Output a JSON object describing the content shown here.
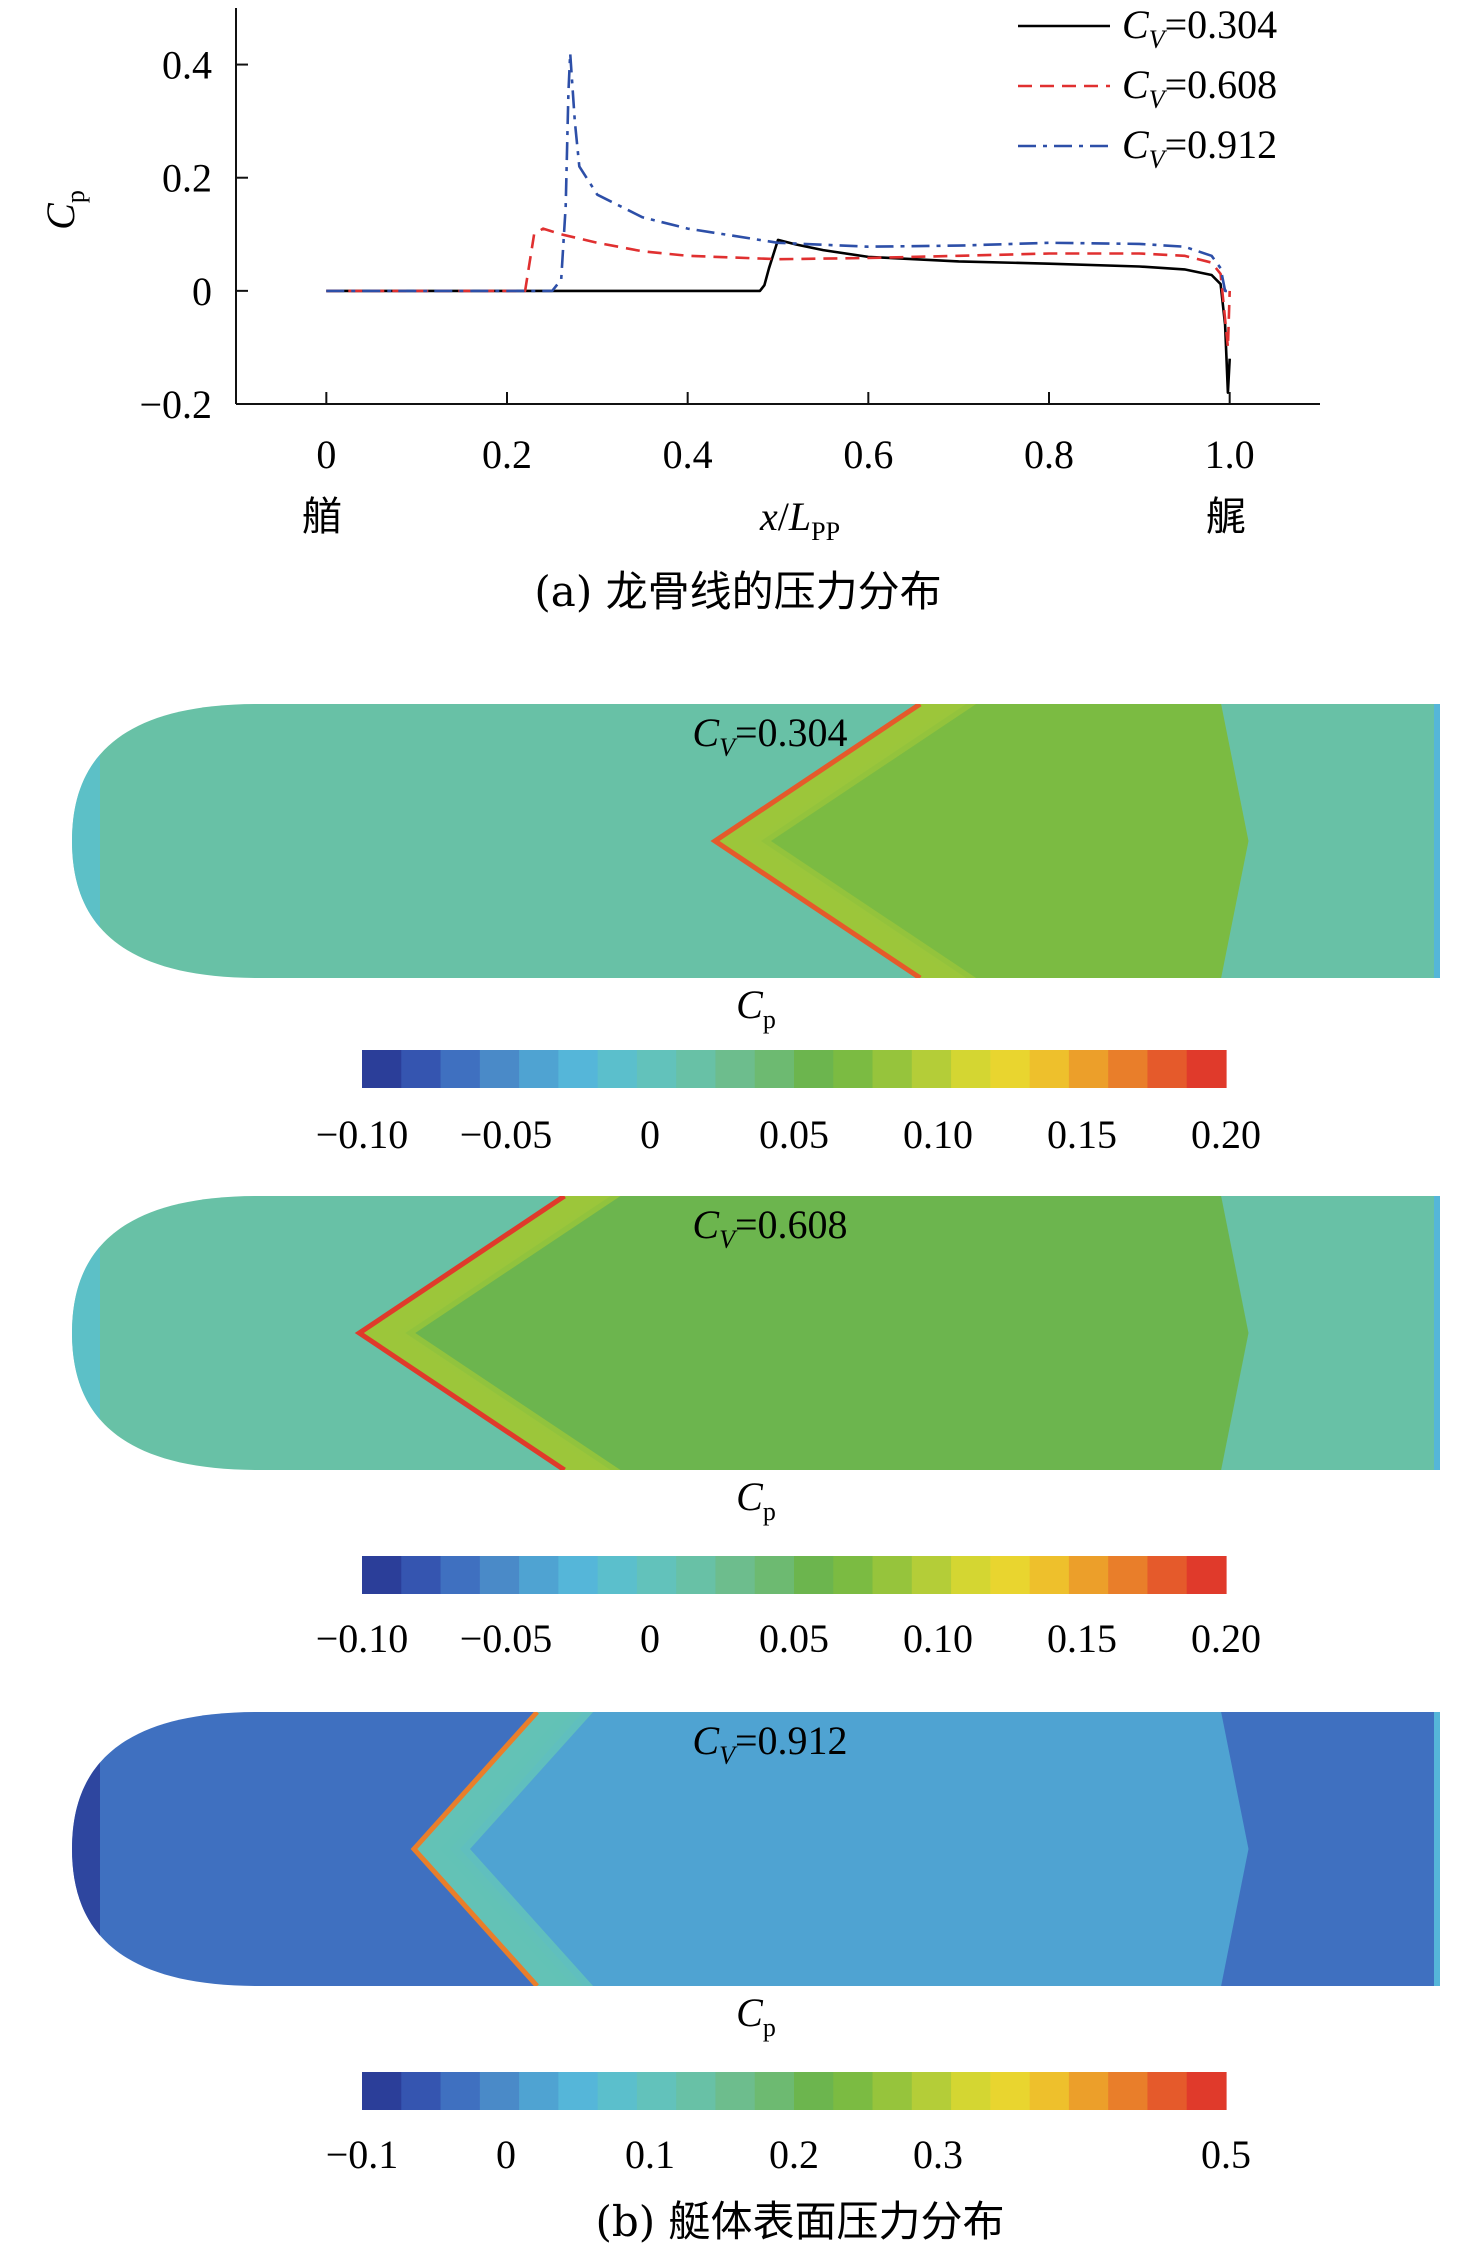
{
  "figure": {
    "caption_a": "(a) 龙骨线的压力分布",
    "caption_b": "(b) 艇体表面压力分布",
    "bow_label": "艏",
    "stern_label": "艉"
  },
  "chart_data": [
    {
      "type": "line",
      "xlabel": "x/Lpp",
      "ylabel": "Cp",
      "xlim": [
        -0.1,
        1.1
      ],
      "ylim": [
        -0.2,
        0.5
      ],
      "xticks": [
        "0",
        "0.2",
        "0.4",
        "0.6",
        "0.8",
        "1.0"
      ],
      "yticks": [
        "−0.2",
        "0",
        "0.2",
        "0.4"
      ],
      "legend": "top-right",
      "series": [
        {
          "name": "CV=0.304",
          "color": "#000000",
          "dash": "solid",
          "x": [
            0.0,
            0.1,
            0.2,
            0.3,
            0.4,
            0.48,
            0.485,
            0.49,
            0.5,
            0.52,
            0.55,
            0.6,
            0.7,
            0.8,
            0.9,
            0.95,
            0.98,
            0.99,
            0.995,
            0.998,
            1.0
          ],
          "y": [
            0.0,
            0.0,
            0.0,
            0.0,
            0.0,
            0.0,
            0.01,
            0.04,
            0.09,
            0.082,
            0.072,
            0.06,
            0.052,
            0.048,
            0.043,
            0.038,
            0.028,
            0.012,
            -0.06,
            -0.18,
            -0.12
          ]
        },
        {
          "name": "CV=0.608",
          "color": "#e03030",
          "dash": "dashed",
          "x": [
            0.0,
            0.1,
            0.2,
            0.22,
            0.225,
            0.23,
            0.24,
            0.26,
            0.3,
            0.35,
            0.4,
            0.5,
            0.6,
            0.7,
            0.8,
            0.9,
            0.95,
            0.98,
            0.99,
            0.995,
            0.998,
            1.0
          ],
          "y": [
            0.0,
            0.0,
            0.0,
            0.0,
            0.05,
            0.1,
            0.11,
            0.1,
            0.085,
            0.07,
            0.062,
            0.056,
            0.058,
            0.062,
            0.066,
            0.066,
            0.062,
            0.05,
            0.03,
            -0.05,
            -0.1,
            0.0
          ]
        },
        {
          "name": "CV=0.912",
          "color": "#2d4fa8",
          "dash": "dashdot",
          "x": [
            0.0,
            0.1,
            0.2,
            0.25,
            0.26,
            0.265,
            0.268,
            0.27,
            0.275,
            0.28,
            0.3,
            0.35,
            0.4,
            0.5,
            0.6,
            0.7,
            0.8,
            0.9,
            0.95,
            0.98,
            0.99,
            0.995,
            1.0
          ],
          "y": [
            0.0,
            0.0,
            0.0,
            0.0,
            0.02,
            0.15,
            0.35,
            0.42,
            0.3,
            0.22,
            0.17,
            0.13,
            0.11,
            0.085,
            0.078,
            0.08,
            0.085,
            0.083,
            0.078,
            0.062,
            0.04,
            0.0,
            0.0
          ]
        }
      ]
    },
    {
      "type": "heatmap",
      "title": "CV=0.304",
      "colorbar_label": "Cp",
      "colorbar_ticks": [
        "−0.10",
        "−0.05",
        "0",
        "0.05",
        "0.10",
        "0.15",
        "0.20"
      ],
      "colorbar_range": [
        -0.1,
        0.2
      ],
      "base_value": 0.02,
      "shock_start_x": 0.47,
      "shock_end_x": 0.62,
      "shock_peak_value": 0.18,
      "wake_value": 0.07
    },
    {
      "type": "heatmap",
      "title": "CV=0.608",
      "colorbar_label": "Cp",
      "colorbar_ticks": [
        "−0.10",
        "−0.05",
        "0",
        "0.05",
        "0.10",
        "0.15",
        "0.20"
      ],
      "colorbar_range": [
        -0.1,
        0.2
      ],
      "base_value": 0.02,
      "shock_start_x": 0.21,
      "shock_end_x": 0.36,
      "shock_peak_value": 0.2,
      "wake_value": 0.06
    },
    {
      "type": "heatmap",
      "title": "CV=0.912",
      "colorbar_label": "Cp",
      "colorbar_ticks": [
        "−0.1",
        "0",
        "0.1",
        "0.2",
        "0.3",
        "0.5"
      ],
      "colorbar_range": [
        -0.1,
        0.5
      ],
      "base_value": -0.02,
      "shock_start_x": 0.25,
      "shock_end_x": 0.34,
      "shock_peak_value": 0.42,
      "wake_value": 0.03
    }
  ],
  "colors": {
    "colormap": [
      "#2b3e99",
      "#3555b0",
      "#3f70c0",
      "#4a8ac8",
      "#4fa3d2",
      "#55b6d9",
      "#5bbfcc",
      "#62c2bb",
      "#68c1a6",
      "#6dbd8d",
      "#6dba71",
      "#6cb54e",
      "#7bbb42",
      "#96c43c",
      "#b4cd38",
      "#d4d632",
      "#e9d52f",
      "#eec02c",
      "#ec9f2a",
      "#e97e2a",
      "#e55a2b",
      "#e03a2b"
    ]
  }
}
